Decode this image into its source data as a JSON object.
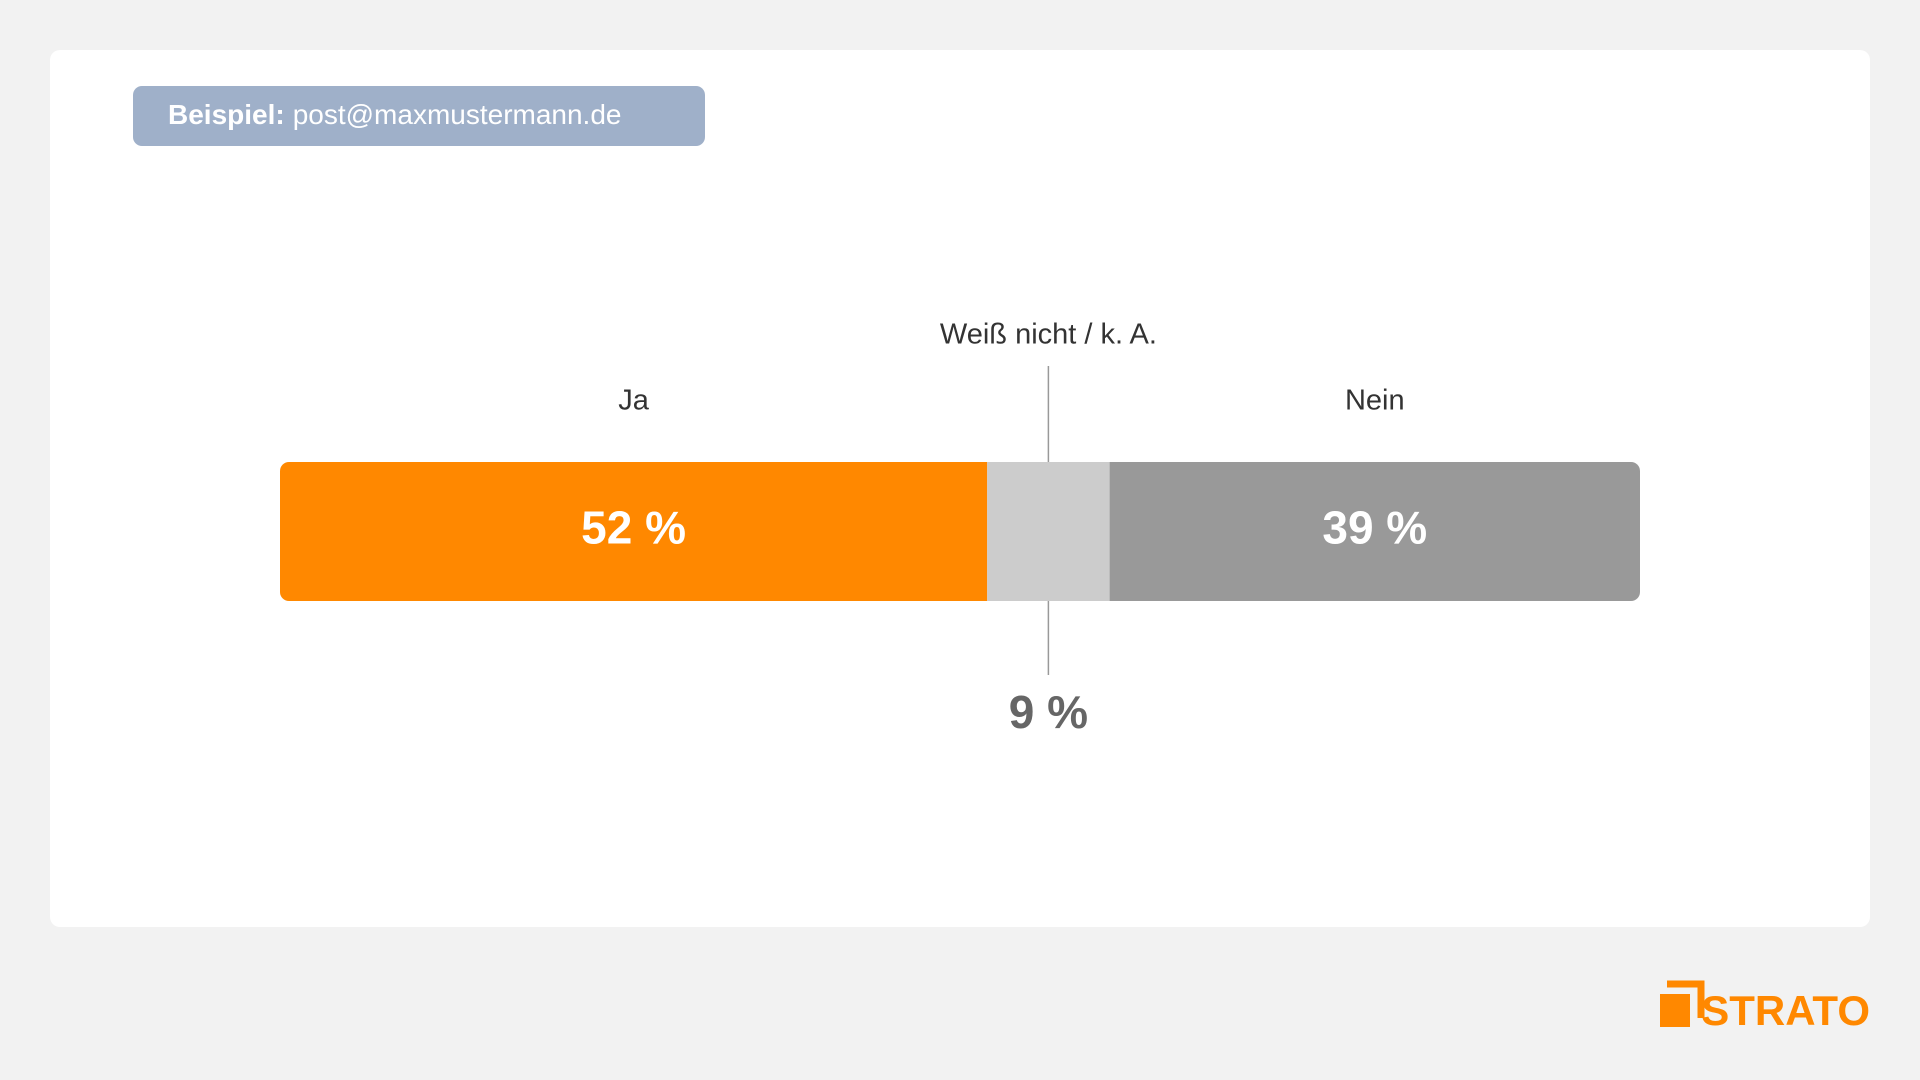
{
  "badge": {
    "label": "Beispiel:",
    "text": "post@maxmustermann.de"
  },
  "logo": "STRATO",
  "chart_data": {
    "type": "bar",
    "orientation": "horizontal",
    "stacked": true,
    "series": [
      {
        "name": "Ja",
        "color": "#ff8800",
        "values": [
          52
        ],
        "value_labels": [
          "52 %"
        ]
      },
      {
        "name": "Weiß nicht / k. A.",
        "color": "#cccccc",
        "values": [
          9
        ],
        "value_labels": [
          "9 %"
        ]
      },
      {
        "name": "Nein",
        "color": "#999999",
        "values": [
          39
        ],
        "value_labels": [
          "39 %"
        ]
      }
    ]
  }
}
